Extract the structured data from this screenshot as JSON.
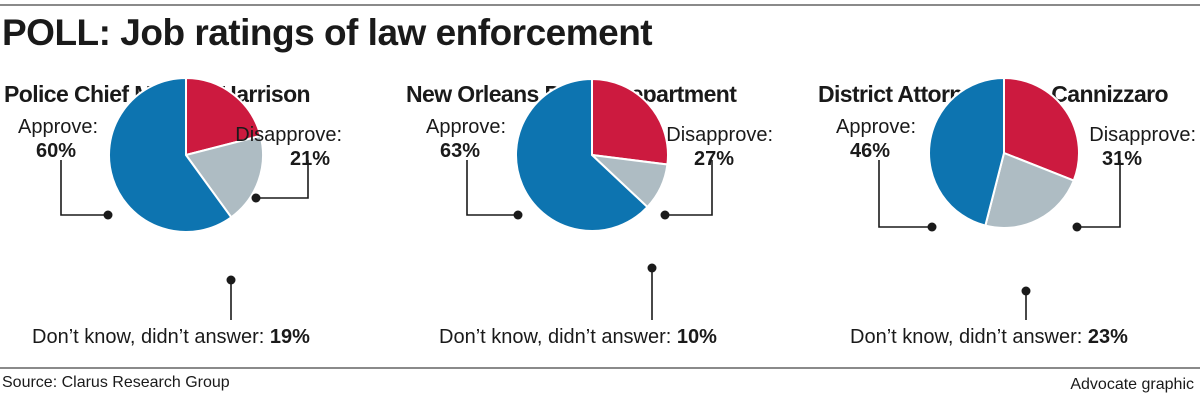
{
  "headline": "POLL: Job ratings of law enforcement",
  "chart_data": [
    {
      "type": "pie",
      "title": "Police Chief Michael Harrison",
      "slices": [
        {
          "label": "Disapprove:",
          "value": 21,
          "display": "21%",
          "color": "#cc1a3f"
        },
        {
          "label": "Don’t know, didn’t answer:",
          "value": 19,
          "display": "19%",
          "color": "#aebcc3"
        },
        {
          "label": "Approve:",
          "value": 60,
          "display": "60%",
          "color": "#0d74b0"
        }
      ]
    },
    {
      "type": "pie",
      "title": "New Orleans Police Department",
      "slices": [
        {
          "label": "Disapprove:",
          "value": 27,
          "display": "27%",
          "color": "#cc1a3f"
        },
        {
          "label": "Don’t know, didn’t answer:",
          "value": 10,
          "display": "10%",
          "color": "#aebcc3"
        },
        {
          "label": "Approve:",
          "value": 63,
          "display": "63%",
          "color": "#0d74b0"
        }
      ]
    },
    {
      "type": "pie",
      "title": "District Attorney Leon Cannizzaro",
      "slices": [
        {
          "label": "Disapprove:",
          "value": 31,
          "display": "31%",
          "color": "#cc1a3f"
        },
        {
          "label": "Don’t know, didn’t answer:",
          "value": 23,
          "display": "23%",
          "color": "#aebcc3"
        },
        {
          "label": "Approve:",
          "value": 46,
          "display": "46%",
          "color": "#0d74b0"
        }
      ]
    }
  ],
  "footer": {
    "source": "Source: Clarus Research Group",
    "credit": "Advocate graphic"
  }
}
